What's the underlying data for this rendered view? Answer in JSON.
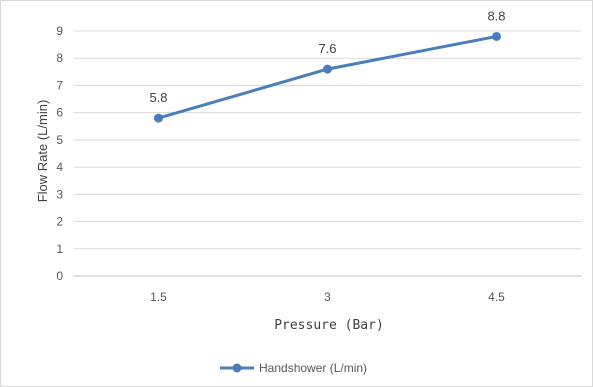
{
  "chart_data": {
    "type": "line",
    "title": "",
    "xlabel": "Pressure (Bar)",
    "ylabel": "Flow Rate (L/min)",
    "categories": [
      "1.5",
      "3",
      "4.5"
    ],
    "ylim": [
      0,
      9
    ],
    "yticks": [
      "0",
      "1",
      "2",
      "3",
      "4",
      "5",
      "6",
      "7",
      "8",
      "9"
    ],
    "grid": true,
    "legend_position": "bottom",
    "series": [
      {
        "name": "Handshower (L/min)",
        "values": [
          5.8,
          7.6,
          8.8
        ],
        "data_labels": [
          "5.8",
          "7.6",
          "8.8"
        ],
        "color": "#4a7ebb"
      }
    ]
  }
}
